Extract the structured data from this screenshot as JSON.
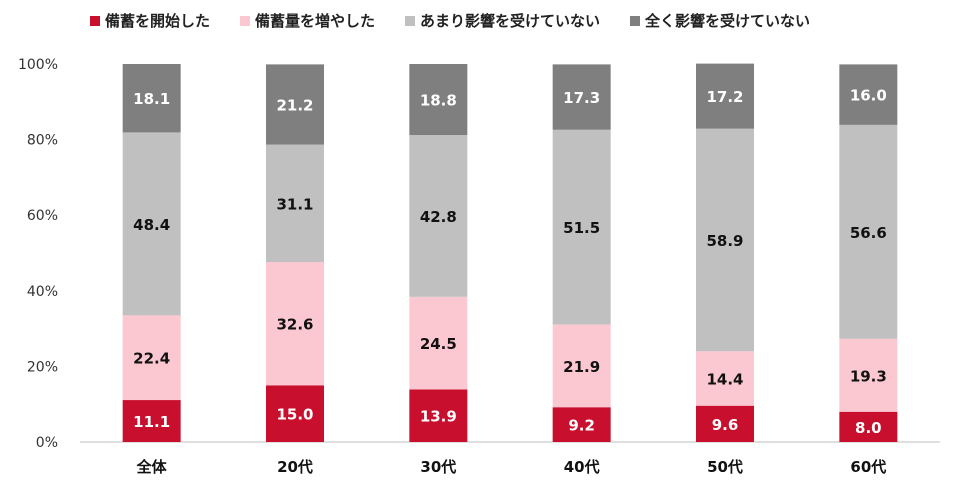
{
  "chart_data": {
    "type": "bar",
    "stacked": true,
    "categories": [
      "全体",
      "20代",
      "30代",
      "40代",
      "50代",
      "60代"
    ],
    "series": [
      {
        "name": "備蓄を開始した",
        "color": "#c8102e",
        "label_color": "#ffffff",
        "values": [
          11.1,
          15.0,
          13.9,
          9.2,
          9.6,
          8.0
        ]
      },
      {
        "name": "備蓄量を増やした",
        "color": "#fbc8d1",
        "label_color": "#111111",
        "values": [
          22.4,
          32.6,
          24.5,
          21.9,
          14.4,
          19.3
        ]
      },
      {
        "name": "あまり影響を受けていない",
        "color": "#c0c0c0",
        "label_color": "#111111",
        "values": [
          48.4,
          31.1,
          42.8,
          51.5,
          58.9,
          56.6
        ]
      },
      {
        "name": "全く影響を受けていない",
        "color": "#7f7f7f",
        "label_color": "#ffffff",
        "values": [
          18.1,
          21.2,
          18.8,
          17.3,
          17.2,
          16.0
        ]
      }
    ],
    "value_labels": [
      [
        "11.1",
        "15.0",
        "13.9",
        "9.2",
        "9.6",
        "8.0"
      ],
      [
        "22.4",
        "32.6",
        "24.5",
        "21.9",
        "14.4",
        "19.3"
      ],
      [
        "48.4",
        "31.1",
        "42.8",
        "51.5",
        "58.9",
        "56.6"
      ],
      [
        "18.1",
        "21.2",
        "18.8",
        "17.3",
        "17.2",
        "16.0"
      ]
    ],
    "yticks": [
      "0%",
      "20%",
      "40%",
      "60%",
      "80%",
      "100%"
    ],
    "ylim": [
      0,
      100
    ],
    "legend_position": "top",
    "grid": false
  }
}
